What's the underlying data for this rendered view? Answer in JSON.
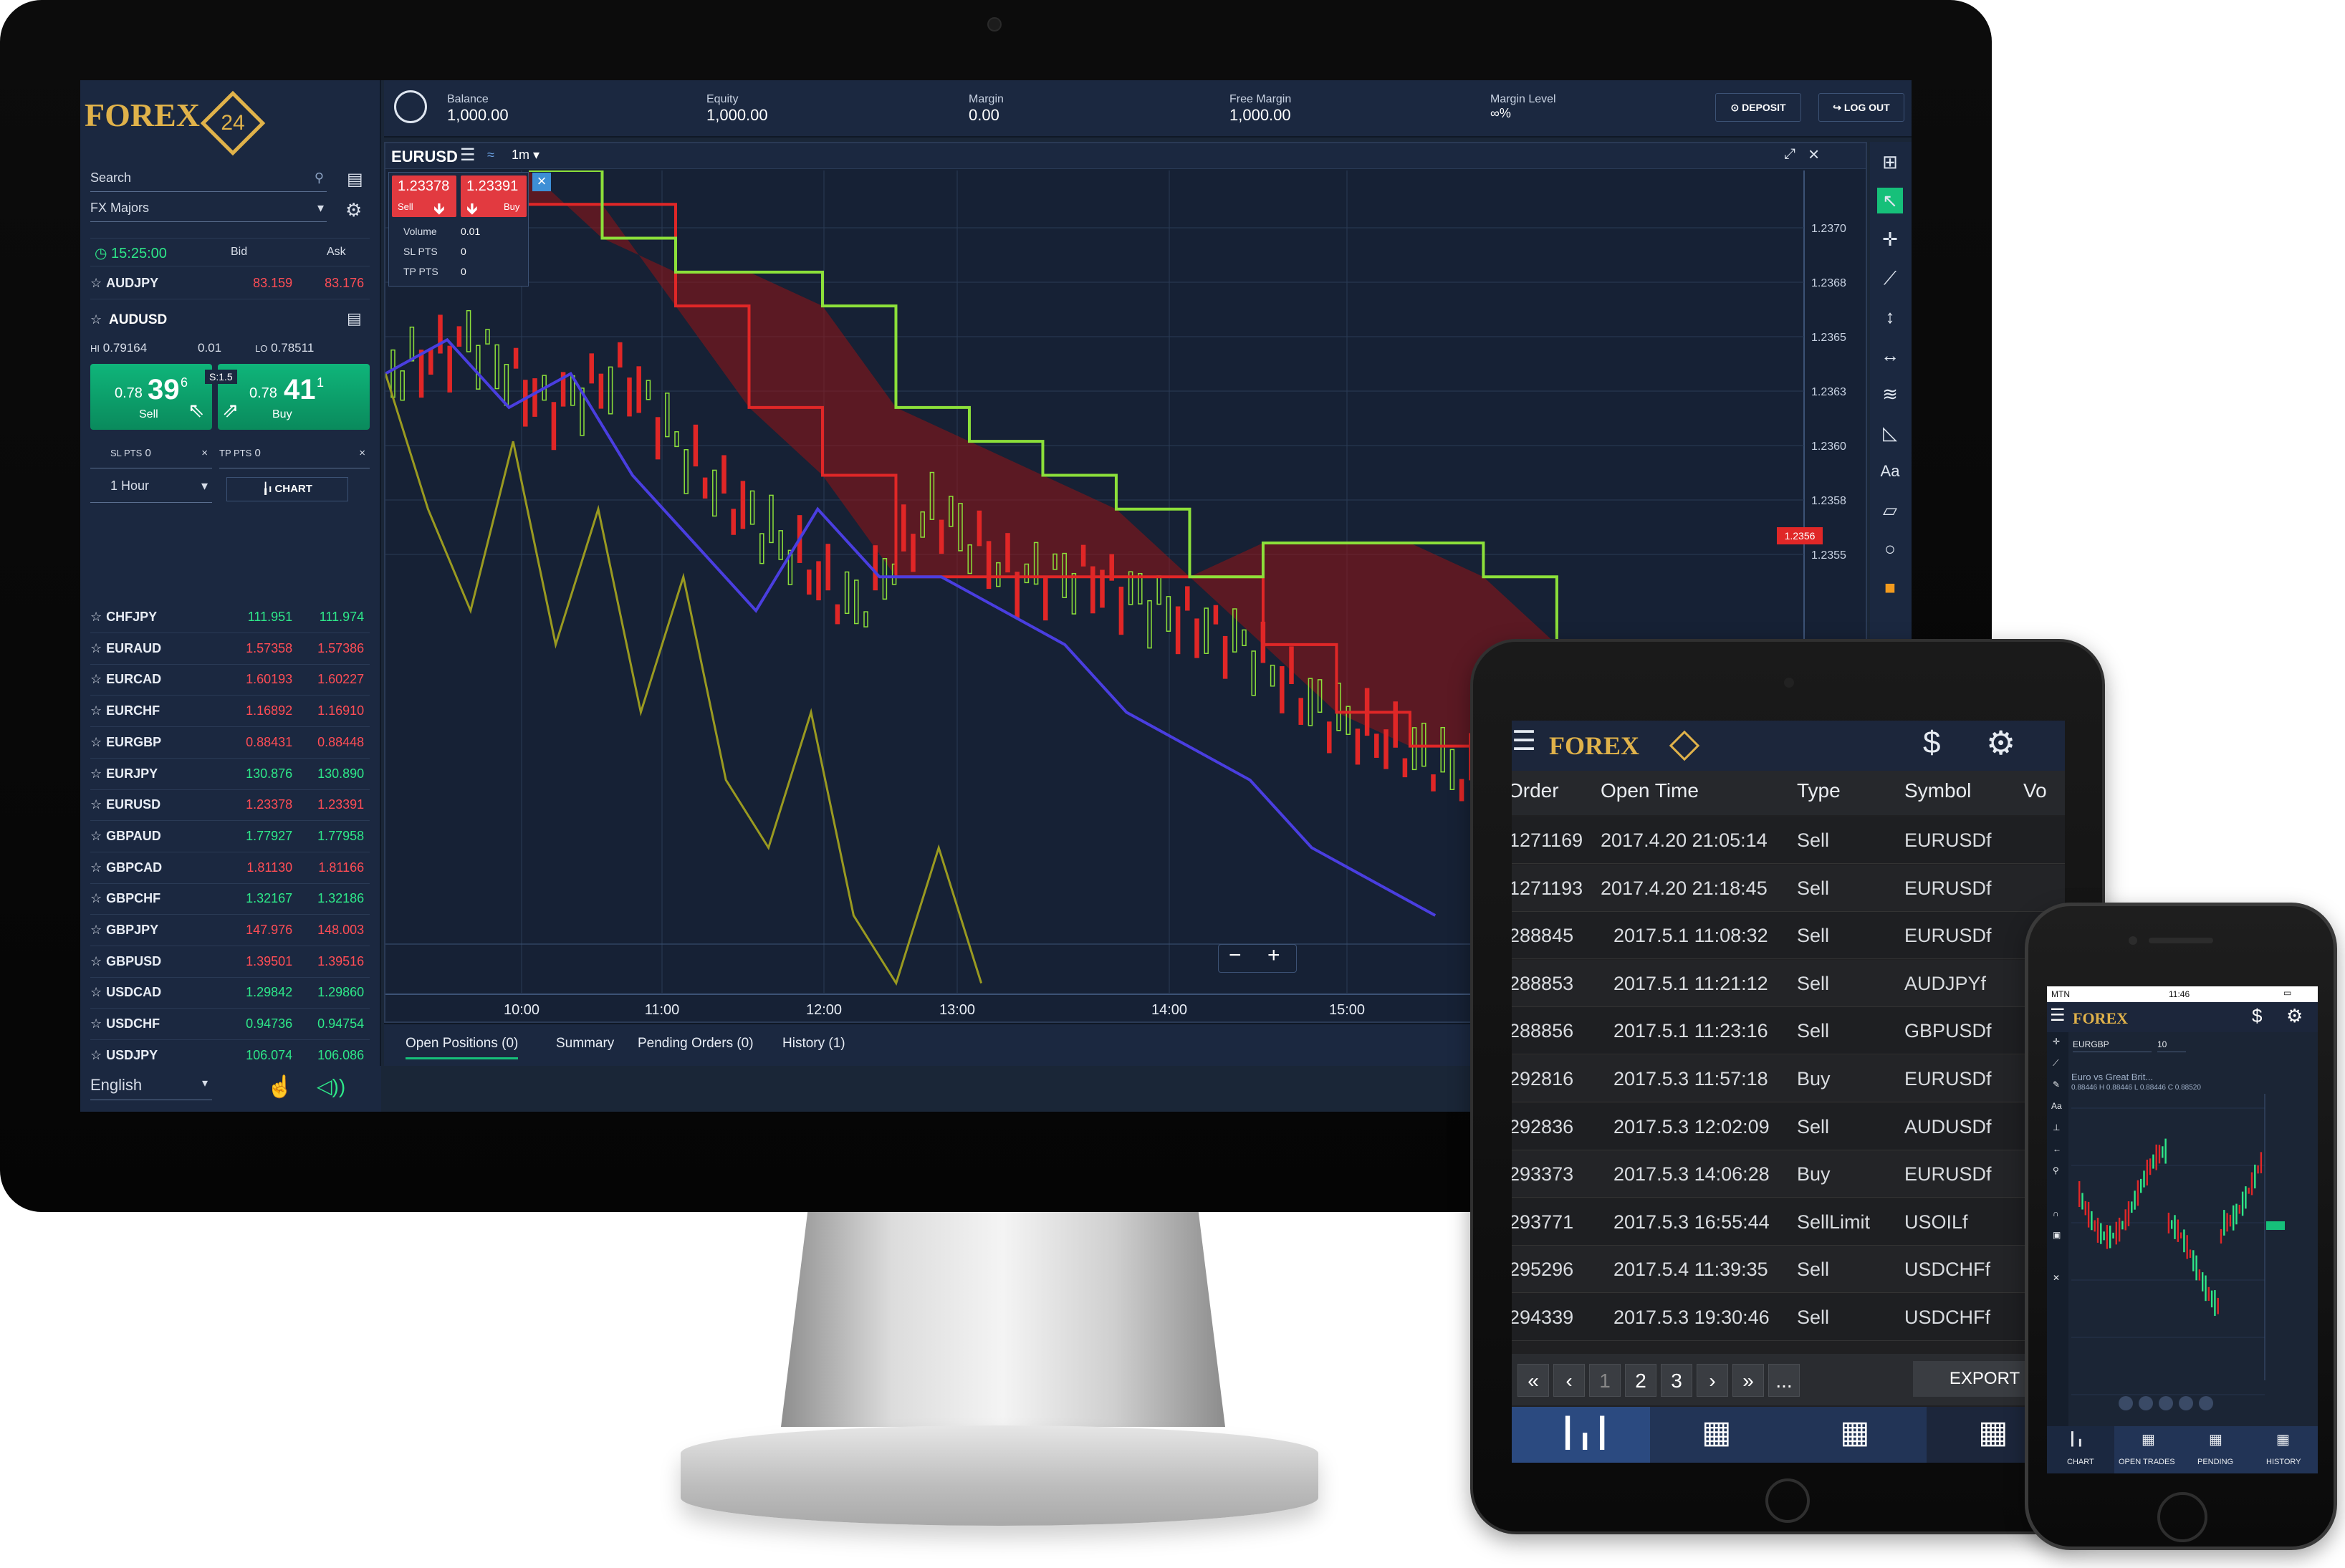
{
  "desktop": {
    "logo_text": "FOREX",
    "logo_badge": "24",
    "search_placeholder": "Search",
    "group_select": "FX Majors",
    "clock": "15:25:00",
    "bid_label": "Bid",
    "ask_label": "Ask",
    "featured_top": {
      "symbol": "AUDJPY",
      "bid": "83.159",
      "ask": "83.176"
    },
    "featured": {
      "symbol": "AUDUSD",
      "hi_label": "HI",
      "hi": "0.79164",
      "spread_small": "0.01",
      "lo_label": "LO",
      "lo": "0.78511",
      "sell_prefix": "0.78",
      "sell_big": "39",
      "sell_sup": "6",
      "sell_label": "Sell",
      "buy_prefix": "0.78",
      "buy_big": "41",
      "buy_sup": "1",
      "buy_label": "Buy",
      "spread": "S:1.5",
      "sl_label": "SL PTS",
      "sl_value": "0",
      "tp_label": "TP PTS",
      "tp_value": "0",
      "timeframe": "1 Hour",
      "chart_button": "CHART"
    },
    "symbols": [
      {
        "symbol": "CHFJPY",
        "bid": "111.951",
        "ask": "111.974",
        "dir": "up"
      },
      {
        "symbol": "EURAUD",
        "bid": "1.57358",
        "ask": "1.57386",
        "dir": "dn"
      },
      {
        "symbol": "EURCAD",
        "bid": "1.60193",
        "ask": "1.60227",
        "dir": "dn"
      },
      {
        "symbol": "EURCHF",
        "bid": "1.16892",
        "ask": "1.16910",
        "dir": "dn"
      },
      {
        "symbol": "EURGBP",
        "bid": "0.88431",
        "ask": "0.88448",
        "dir": "dn"
      },
      {
        "symbol": "EURJPY",
        "bid": "130.876",
        "ask": "130.890",
        "dir": "up"
      },
      {
        "symbol": "EURUSD",
        "bid": "1.23378",
        "ask": "1.23391",
        "dir": "dn"
      },
      {
        "symbol": "GBPAUD",
        "bid": "1.77927",
        "ask": "1.77958",
        "dir": "up"
      },
      {
        "symbol": "GBPCAD",
        "bid": "1.81130",
        "ask": "1.81166",
        "dir": "dn"
      },
      {
        "symbol": "GBPCHF",
        "bid": "1.32167",
        "ask": "1.32186",
        "dir": "up"
      },
      {
        "symbol": "GBPJPY",
        "bid": "147.976",
        "ask": "148.003",
        "dir": "dn"
      },
      {
        "symbol": "GBPUSD",
        "bid": "1.39501",
        "ask": "1.39516",
        "dir": "dn"
      },
      {
        "symbol": "USDCAD",
        "bid": "1.29842",
        "ask": "1.29860",
        "dir": "up"
      },
      {
        "symbol": "USDCHF",
        "bid": "0.94736",
        "ask": "0.94754",
        "dir": "up"
      },
      {
        "symbol": "USDJPY",
        "bid": "106.074",
        "ask": "106.086",
        "dir": "up"
      }
    ],
    "language": "English",
    "account": {
      "balance_label": "Balance",
      "balance": "1,000.00",
      "equity_label": "Equity",
      "equity": "1,000.00",
      "margin_label": "Margin",
      "margin": "0.00",
      "free_margin_label": "Free Margin",
      "free_margin": "1,000.00",
      "margin_level_label": "Margin Level",
      "margin_level": "∞%",
      "deposit": "DEPOSIT",
      "logout": "LOG OUT"
    },
    "chart_header": {
      "symbol": "EURUSD",
      "timeframe": "1m"
    },
    "trade_box": {
      "sell_price": "1.23378",
      "sell_label": "Sell",
      "buy_price": "1.23391",
      "buy_label": "Buy",
      "volume_label": "Volume",
      "volume": "0.01",
      "sl_label": "SL PTS",
      "sl": "0",
      "tp_label": "TP PTS",
      "tp": "0"
    },
    "current_price_tag": "1.2356",
    "bottom_tabs": [
      "Open Positions (0)",
      "Summary",
      "Pending Orders (0)",
      "History (1)"
    ]
  },
  "chart_data": {
    "type": "line",
    "title": "",
    "x_ticks": [
      "10:00",
      "11:00",
      "12:00",
      "13:00",
      "14:00",
      "15:00"
    ],
    "y_ticks": [
      "1.2370",
      "1.2368",
      "1.2365",
      "1.2363",
      "1.2360",
      "1.2358",
      "1.2355"
    ],
    "ylim": [
      1.235,
      1.2372
    ],
    "series": [
      {
        "name": "",
        "color": "#e02727",
        "values": [
          1.2371,
          1.2371,
          1.2368,
          1.2365,
          1.2363,
          1.236,
          1.236,
          1.236,
          1.236,
          1.236,
          1.2358,
          1.2356,
          1.2355,
          1.2355,
          1.2353,
          1.235,
          1.235,
          1.235
        ]
      },
      {
        "name": "",
        "color": "#8ce03a",
        "values": [
          1.2372,
          1.237,
          1.2369,
          1.2369,
          1.2368,
          1.2365,
          1.2364,
          1.2363,
          1.2362,
          1.236,
          1.2361,
          1.2361,
          1.2361,
          1.236,
          1.2358,
          1.2356,
          1.2356,
          1.2356
        ]
      },
      {
        "name": "",
        "color": "#4a3ee0",
        "values": [
          1.2366,
          1.2367,
          1.2365,
          1.2366,
          1.2363,
          1.2361,
          1.2359,
          1.2362,
          1.236,
          1.236,
          1.2359,
          1.2358,
          1.2356,
          1.2355,
          1.2354,
          1.2352,
          1.2351,
          1.235
        ]
      },
      {
        "name": "",
        "color": "#9a9a20",
        "values": [
          1.2366,
          1.2362,
          1.2359,
          1.2364,
          1.2358,
          1.2362,
          1.2356,
          1.236,
          1.2354,
          1.2352,
          1.2356,
          1.235,
          1.2348,
          1.2352,
          1.2348
        ]
      }
    ]
  },
  "tablet": {
    "logo_text": "FOREX",
    "headers": [
      "Order",
      "Open Time",
      "Type",
      "Symbol",
      "Vo"
    ],
    "rows": [
      [
        "1271169",
        "2017.4.20 21:05:14",
        "Sell",
        "EURUSDf"
      ],
      [
        "1271193",
        "2017.4.20 21:18:45",
        "Sell",
        "EURUSDf"
      ],
      [
        "288845",
        "2017.5.1 11:08:32",
        "Sell",
        "EURUSDf"
      ],
      [
        "288853",
        "2017.5.1 11:21:12",
        "Sell",
        "AUDJPYf"
      ],
      [
        "288856",
        "2017.5.1 11:23:16",
        "Sell",
        "GBPUSDf"
      ],
      [
        "292816",
        "2017.5.3 11:57:18",
        "Buy",
        "EURUSDf"
      ],
      [
        "292836",
        "2017.5.3 12:02:09",
        "Sell",
        "AUDUSDf"
      ],
      [
        "293373",
        "2017.5.3 14:06:28",
        "Buy",
        "EURUSDf"
      ],
      [
        "293771",
        "2017.5.3 16:55:44",
        "SellLimit",
        "USOILf"
      ],
      [
        "295296",
        "2017.5.4 11:39:35",
        "Sell",
        "USDCHFf"
      ],
      [
        "294339",
        "2017.5.3 19:30:46",
        "Sell",
        "USDCHFf"
      ]
    ],
    "pager": [
      "«",
      "‹",
      "1",
      "2",
      "3",
      "›",
      "»",
      "..."
    ],
    "export": "EXPORT"
  },
  "phone": {
    "carrier": "MTN",
    "time": "11:46",
    "logo_text": "FOREX",
    "symbol": "EURGBP",
    "lot": "10",
    "chart_title": "Euro vs Great Brit...",
    "chart_quote": "0.88446 H 0.88446 L 0.88446 C 0.88520",
    "nav": [
      "CHART",
      "OPEN TRADES",
      "PENDING",
      "HISTORY"
    ]
  }
}
